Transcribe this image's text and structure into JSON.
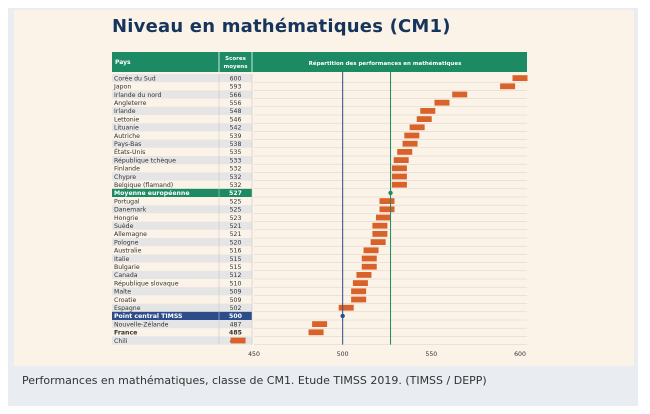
{
  "title": "Niveau en mathématiques (CM1)",
  "caption": "Performances en mathématiques, classe de CM1. Etude TIMSS 2019. (TIMSS / DEPP)",
  "header": {
    "pays": "Pays",
    "scores_line1": "Scores",
    "scores_line2": "moyens",
    "repartition": "Répartition des performances en mathématiques"
  },
  "colors": {
    "header_green": "#1c8a63",
    "title_navy": "#16355c",
    "bar_orange": "#d9622b",
    "europe_green": "#1c8a63",
    "timss_blue": "#2d4d8a",
    "panel_bg": "#fbf3e7",
    "band": "#e5e5e5"
  },
  "chart_data": {
    "type": "bar",
    "title": "Niveau en mathématiques (CM1)",
    "xlim": [
      450,
      600
    ],
    "xticks": [
      450,
      500,
      550,
      600
    ],
    "reference_lines": [
      {
        "name": "Moyenne européenne",
        "value": 527
      },
      {
        "name": "Point central TIMSS",
        "value": 500
      }
    ],
    "rows": [
      {
        "country": "Corée du Sud",
        "score": "600",
        "value": 600,
        "kind": "country"
      },
      {
        "country": "Japon",
        "score": "593",
        "value": 593,
        "kind": "country"
      },
      {
        "country": "Irlande du nord",
        "score": "566",
        "value": 566,
        "kind": "country"
      },
      {
        "country": "Angleterre",
        "score": "556",
        "value": 556,
        "kind": "country"
      },
      {
        "country": "Irlande",
        "score": "548",
        "value": 548,
        "kind": "country"
      },
      {
        "country": "Lettonie",
        "score": "546",
        "value": 546,
        "kind": "country"
      },
      {
        "country": "Lituanie",
        "score": "542",
        "value": 542,
        "kind": "country"
      },
      {
        "country": "Autriche",
        "score": "539",
        "value": 539,
        "kind": "country"
      },
      {
        "country": "Pays-Bas",
        "score": "538",
        "value": 538,
        "kind": "country"
      },
      {
        "country": "États-Unis",
        "score": "535",
        "value": 535,
        "kind": "country"
      },
      {
        "country": "République tchèque",
        "score": "533",
        "value": 533,
        "kind": "country"
      },
      {
        "country": "Finlande",
        "score": "532",
        "value": 532,
        "kind": "country"
      },
      {
        "country": "Chypre",
        "score": "532",
        "value": 532,
        "kind": "country"
      },
      {
        "country": "Belgique (flamand)",
        "score": "532",
        "value": 532,
        "kind": "country"
      },
      {
        "country": "Moyenne européenne",
        "score": "527",
        "value": 527,
        "kind": "europe"
      },
      {
        "country": "Portugal",
        "score": "525",
        "value": 525,
        "kind": "country"
      },
      {
        "country": "Danemark",
        "score": "525",
        "value": 525,
        "kind": "country"
      },
      {
        "country": "Hongrie",
        "score": "523",
        "value": 523,
        "kind": "country"
      },
      {
        "country": "Suède",
        "score": "521",
        "value": 521,
        "kind": "country"
      },
      {
        "country": "Allemagne",
        "score": "521",
        "value": 521,
        "kind": "country"
      },
      {
        "country": "Pologne",
        "score": "520",
        "value": 520,
        "kind": "country"
      },
      {
        "country": "Australie",
        "score": "516",
        "value": 516,
        "kind": "country"
      },
      {
        "country": "Italie",
        "score": "515",
        "value": 515,
        "kind": "country"
      },
      {
        "country": "Bulgarie",
        "score": "515",
        "value": 515,
        "kind": "country"
      },
      {
        "country": "Canada",
        "score": "512",
        "value": 512,
        "kind": "country"
      },
      {
        "country": "République slovaque",
        "score": "510",
        "value": 510,
        "kind": "country"
      },
      {
        "country": "Malte",
        "score": "509",
        "value": 509,
        "kind": "country"
      },
      {
        "country": "Croatie",
        "score": "509",
        "value": 509,
        "kind": "country"
      },
      {
        "country": "Espagne",
        "score": "502",
        "value": 502,
        "kind": "country"
      },
      {
        "country": "Point central TIMSS",
        "score": "500",
        "value": 500,
        "kind": "timss"
      },
      {
        "country": "Nouvelle-Zélande",
        "score": "487",
        "value": 487,
        "kind": "country"
      },
      {
        "country": "France",
        "score": "485",
        "value": 485,
        "kind": "france"
      },
      {
        "country": "Chili",
        "score": "441",
        "value": 441,
        "kind": "country"
      }
    ]
  }
}
